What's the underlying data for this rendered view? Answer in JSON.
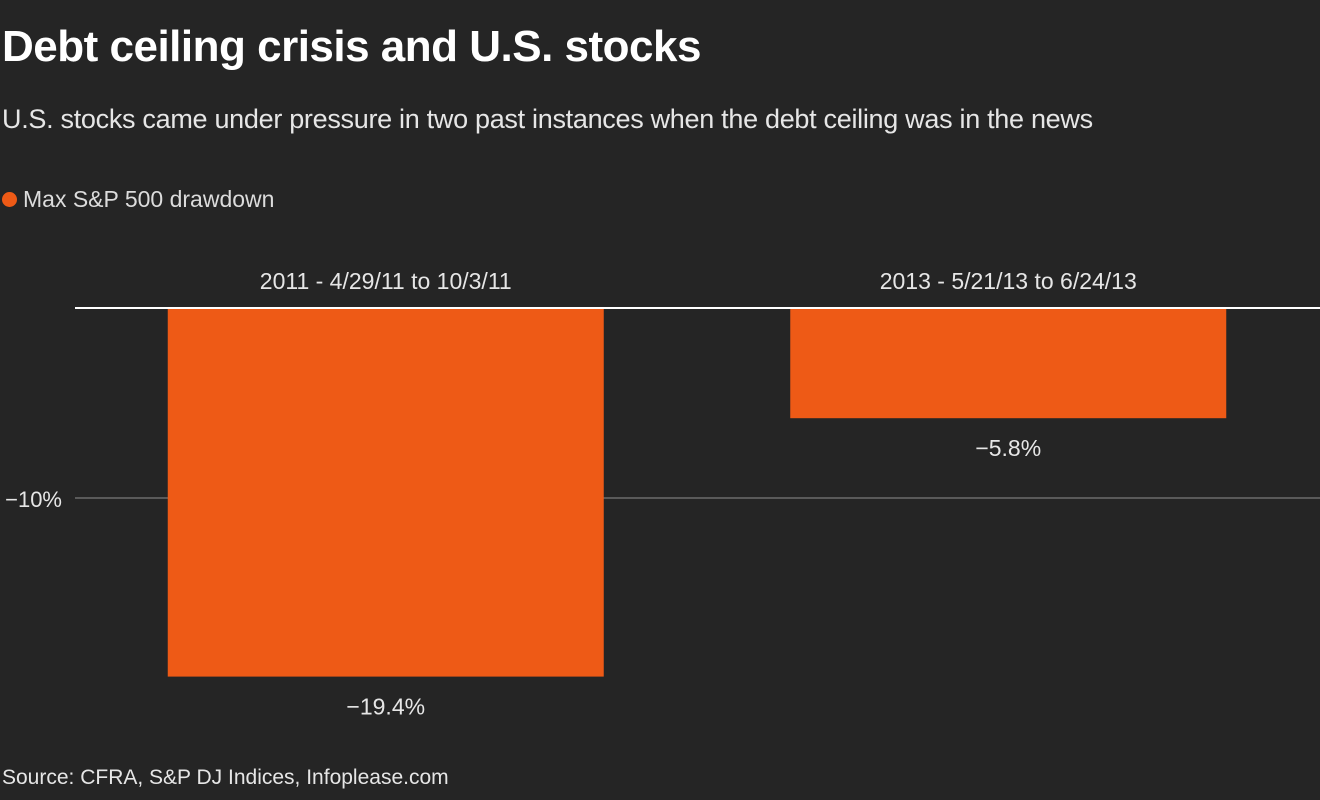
{
  "title": "Debt ceiling crisis and U.S. stocks",
  "subtitle": "U.S. stocks came under pressure in two past instances when the debt ceiling was in the news",
  "source": "Source: CFRA, S&P DJ Indices, Infoplease.com",
  "colors": {
    "background": "#252525",
    "bar": "#ee5a16",
    "zero_line": "#ffffff",
    "gridline": "#5a5a5a",
    "text": "#e6e6e6"
  },
  "chart_data": {
    "type": "bar",
    "orientation": "vertical",
    "title": "Debt ceiling crisis and U.S. stocks",
    "subtitle": "U.S. stocks came under pressure in two past instances when the debt ceiling was in the news",
    "categories": [
      "2011 - 4/29/11 to 10/3/11",
      "2013 - 5/21/13 to 6/24/13"
    ],
    "series": [
      {
        "name": "Max S&P 500 drawdown",
        "values": [
          -19.4,
          -5.8
        ],
        "color": "#ee5a16"
      }
    ],
    "data_labels": [
      "−19.4%",
      "−5.8%"
    ],
    "xlabel": "",
    "ylabel": "",
    "ylim": [
      -22,
      0
    ],
    "yticks": [
      {
        "value": -10,
        "label": "−10%"
      }
    ],
    "category_label_position": "top",
    "grid": true,
    "legend": {
      "position": "top-left",
      "entries": [
        "Max S&P 500 drawdown"
      ]
    },
    "source": "Source: CFRA, S&P DJ Indices, Infoplease.com"
  }
}
